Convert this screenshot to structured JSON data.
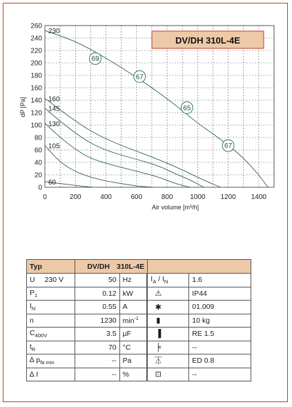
{
  "chart_data": {
    "type": "line",
    "title": "DV/DH 310L-4E",
    "xlabel": "Air volume [m³/h]",
    "ylabel": "dP [Pa]",
    "xlim": [
      0,
      1500
    ],
    "ylim": [
      0,
      260
    ],
    "xticks": [
      0,
      200,
      400,
      600,
      800,
      1000,
      1200,
      1400
    ],
    "yticks": [
      0,
      20,
      40,
      60,
      80,
      100,
      120,
      140,
      160,
      180,
      200,
      220,
      240,
      260
    ],
    "grid": true,
    "series": [
      {
        "name": "230",
        "x": [
          0,
          200,
          400,
          600,
          800,
          1000,
          1100,
          1200,
          1300,
          1400,
          1460
        ],
        "y": [
          252,
          235,
          208,
          177,
          143,
          103,
          86,
          68,
          47,
          20,
          0
        ]
      },
      {
        "name": "160",
        "x": [
          0,
          150,
          300,
          450,
          600,
          750,
          900,
          1000,
          1100,
          1150
        ],
        "y": [
          143,
          115,
          90,
          72,
          58,
          44,
          28,
          16,
          5,
          0
        ]
      },
      {
        "name": "145",
        "x": [
          0,
          150,
          300,
          450,
          600,
          750,
          850,
          950,
          1040
        ],
        "y": [
          127,
          96,
          70,
          55,
          45,
          34,
          22,
          12,
          0
        ]
      },
      {
        "name": "130",
        "x": [
          0,
          100,
          200,
          300,
          450,
          600,
          750,
          830,
          900,
          950
        ],
        "y": [
          103,
          80,
          61,
          46,
          35,
          26,
          16,
          8,
          3,
          0
        ]
      },
      {
        "name": "105",
        "x": [
          0,
          100,
          200,
          300,
          400,
          500,
          600,
          700
        ],
        "y": [
          67,
          40,
          25,
          16,
          10,
          6,
          2,
          0
        ]
      },
      {
        "name": "60",
        "x": [
          0,
          100,
          200,
          310
        ],
        "y": [
          9,
          6,
          3,
          0
        ]
      }
    ],
    "annotations": [
      {
        "label": "69",
        "x": 330,
        "y": 207
      },
      {
        "label": "67",
        "x": 620,
        "y": 178
      },
      {
        "label": "65",
        "x": 930,
        "y": 128
      },
      {
        "label": "67",
        "x": 1200,
        "y": 67
      }
    ],
    "colors": {
      "curve": "#2e5e5a",
      "grid": "#666666",
      "annotation": "#2e7d4f",
      "title_fill": "#eec9a7",
      "title_border": "#c0392b"
    }
  },
  "table": {
    "header": {
      "typ": "Typ",
      "model_a": "DV/DH",
      "model_b": "310L-4E"
    },
    "rows": [
      {
        "sym": "U",
        "sub": "",
        "sup": "",
        "extra": "230   V",
        "value": "50",
        "unit": "Hz",
        "icon": "current-ratio",
        "icon_text": "",
        "spec": "1.6",
        "left_label": "I",
        "left_sub": "A",
        "right_label": "I",
        "right_sub": "N"
      },
      {
        "sym": "P",
        "sub": "1",
        "sup": "",
        "extra": "",
        "value": "0.12",
        "unit": "kW",
        "icon": "warning-triangle-icon",
        "icon_text": "⚠",
        "spec": "IP44"
      },
      {
        "sym": "I",
        "sub": "N",
        "sup": "",
        "extra": "",
        "value": "0.55",
        "unit": "A",
        "icon": "certification-star-icon",
        "icon_text": "✱",
        "spec": "01.009"
      },
      {
        "sym": "n",
        "sub": "",
        "sup": "",
        "extra": "",
        "value": "1230",
        "unit": "min",
        "unit_sup": "-1",
        "icon": "weight-icon",
        "icon_text": "▮",
        "spec": "10 kg"
      },
      {
        "sym": "C",
        "sub": "400V",
        "sup": "",
        "extra": "",
        "value": "3.5",
        "unit": "µF",
        "icon": "connection-block-icon",
        "icon_text": "▐",
        "spec": "RE 1.5"
      },
      {
        "sym": "t",
        "sub": "R",
        "sup": "",
        "extra": "",
        "value": "70",
        "unit": "°C",
        "icon": "thermal-contact-icon",
        "icon_text": "╞",
        "spec": "--"
      },
      {
        "sym": "∆ p",
        "sub": "fa min",
        "sup": "",
        "extra": "",
        "value": "--",
        "unit": "Pa",
        "icon": "controller-icon",
        "icon_text": "⏄",
        "spec": "ED 0.8"
      },
      {
        "sym": "∆ I",
        "sub": "",
        "sup": "",
        "extra": "",
        "value": "--",
        "unit": "%",
        "icon": "capacitor-icon",
        "icon_text": "⊡",
        "spec": "--"
      }
    ]
  }
}
